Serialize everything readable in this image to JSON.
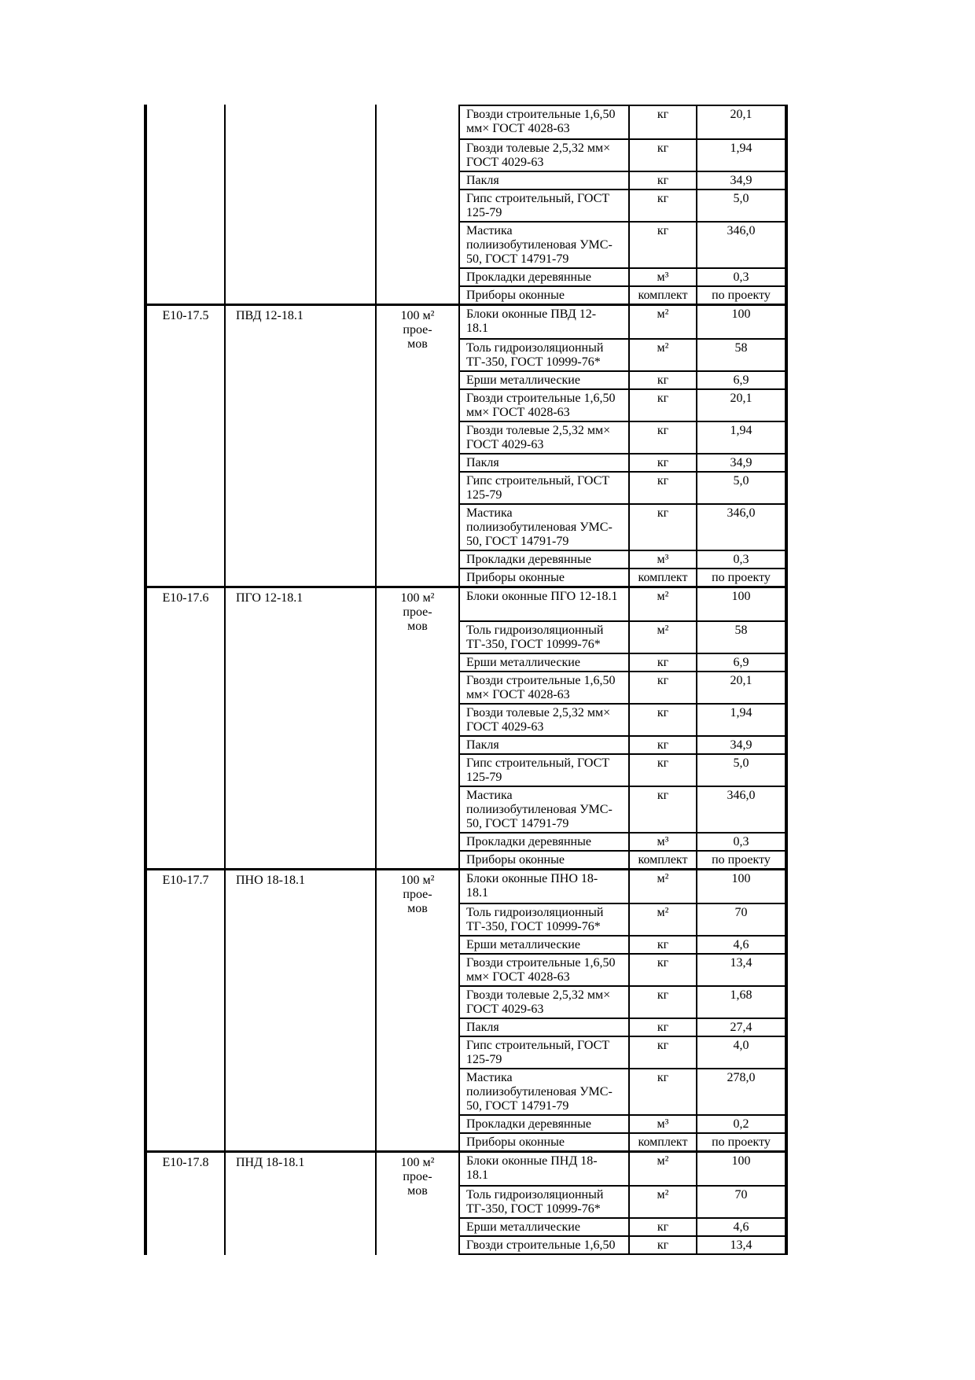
{
  "page": {
    "background": "#ffffff",
    "text_color": "#000000",
    "border_color": "#000000"
  },
  "table": {
    "groups": [
      {
        "code": "",
        "name": "",
        "unit": "",
        "materials": [
          {
            "name": "Гвозди строительные 1,6,50\nмм× ГОСТ 4028-63",
            "unit": "кг",
            "qty": "20,1"
          },
          {
            "name": "Гвозди толевые 2,5,32 мм×\nГОСТ 4029-63",
            "unit": "кг",
            "qty": "1,94"
          },
          {
            "name": "Пакля",
            "unit": "кг",
            "qty": "34,9"
          },
          {
            "name": "Гипс строительный, ГОСТ\n125-79",
            "unit": "кг",
            "qty": "5,0"
          },
          {
            "name": "Мастика\nполиизобутиленовая УМС-\n50, ГОСТ 14791-79",
            "unit": "кг",
            "qty": "346,0"
          },
          {
            "name": "Прокладки деревянные",
            "unit": "м³",
            "qty": "0,3"
          },
          {
            "name": "Приборы оконные",
            "unit": "комплект",
            "qty": "по проекту"
          }
        ]
      },
      {
        "code": "Е10-17.5",
        "name": "ПВД 12-18.1",
        "unit": "100 м²\nпрое-\nмов",
        "materials": [
          {
            "name": "Блоки оконные ПВД 12-\n18.1",
            "unit": "м²",
            "qty": "100"
          },
          {
            "name": "Толь гидроизоляционный\nТГ-350, ГОСТ 10999-76*",
            "unit": "м²",
            "qty": "58"
          },
          {
            "name": "Ерши металлические",
            "unit": "кг",
            "qty": "6,9"
          },
          {
            "name": "Гвозди строительные 1,6,50\nмм× ГОСТ 4028-63",
            "unit": "кг",
            "qty": "20,1"
          },
          {
            "name": "Гвозди толевые 2,5,32 мм×\nГОСТ 4029-63",
            "unit": "кг",
            "qty": "1,94"
          },
          {
            "name": "Пакля",
            "unit": "кг",
            "qty": "34,9"
          },
          {
            "name": "Гипс строительный, ГОСТ\n125-79",
            "unit": "кг",
            "qty": "5,0"
          },
          {
            "name": "Мастика\nполиизобутиленовая УМС-\n50, ГОСТ 14791-79",
            "unit": "кг",
            "qty": "346,0"
          },
          {
            "name": "Прокладки деревянные",
            "unit": "м³",
            "qty": "0,3"
          },
          {
            "name": "Приборы оконные",
            "unit": "комплект",
            "qty": "по проекту"
          }
        ]
      },
      {
        "code": "Е10-17.6",
        "name": "ПГО 12-18.1",
        "unit": "100 м²\nпрое-\nмов",
        "materials": [
          {
            "name": "Блоки оконные ПГО 12-18.1",
            "unit": "м²",
            "qty": "100"
          },
          {
            "name": "Толь гидроизоляционный\nТГ-350, ГОСТ 10999-76*",
            "unit": "м²",
            "qty": "58"
          },
          {
            "name": "Ерши металлические",
            "unit": "кг",
            "qty": "6,9"
          },
          {
            "name": "Гвозди строительные 1,6,50\nмм× ГОСТ 4028-63",
            "unit": "кг",
            "qty": "20,1"
          },
          {
            "name": "Гвозди толевые 2,5,32 мм×\nГОСТ 4029-63",
            "unit": "кг",
            "qty": "1,94"
          },
          {
            "name": "Пакля",
            "unit": "кг",
            "qty": "34,9"
          },
          {
            "name": "Гипс строительный, ГОСТ\n125-79",
            "unit": "кг",
            "qty": "5,0"
          },
          {
            "name": "Мастика\nполиизобутиленовая УМС-\n50, ГОСТ 14791-79",
            "unit": "кг",
            "qty": "346,0"
          },
          {
            "name": "Прокладки деревянные",
            "unit": "м³",
            "qty": "0,3"
          },
          {
            "name": "Приборы оконные",
            "unit": "комплект",
            "qty": "по проекту"
          }
        ]
      },
      {
        "code": "Е10-17.7",
        "name": "ПНО 18-18.1",
        "unit": "100 м²\nпрое-\nмов",
        "materials": [
          {
            "name": "Блоки оконные ПНО 18-\n18.1",
            "unit": "м²",
            "qty": "100"
          },
          {
            "name": "Толь гидроизоляционный\nТГ-350, ГОСТ 10999-76*",
            "unit": "м²",
            "qty": "70"
          },
          {
            "name": "Ерши металлические",
            "unit": "кг",
            "qty": "4,6"
          },
          {
            "name": "Гвозди строительные 1,6,50\nмм× ГОСТ 4028-63",
            "unit": "кг",
            "qty": "13,4"
          },
          {
            "name": "Гвозди толевые 2,5,32 мм×\nГОСТ 4029-63",
            "unit": "кг",
            "qty": "1,68"
          },
          {
            "name": "Пакля",
            "unit": "кг",
            "qty": "27,4"
          },
          {
            "name": "Гипс строительный, ГОСТ\n125-79",
            "unit": "кг",
            "qty": "4,0"
          },
          {
            "name": "Мастика\nполиизобутиленовая УМС-\n50, ГОСТ 14791-79",
            "unit": "кг",
            "qty": "278,0"
          },
          {
            "name": "Прокладки деревянные",
            "unit": "м³",
            "qty": "0,2"
          },
          {
            "name": "Приборы оконные",
            "unit": "комплект",
            "qty": "по проекту"
          }
        ]
      },
      {
        "code": "Е10-17.8",
        "name": "ПНД 18-18.1",
        "unit": "100 м²\nпрое-\nмов",
        "materials": [
          {
            "name": "Блоки оконные ПНД 18-\n18.1",
            "unit": "м²",
            "qty": "100"
          },
          {
            "name": "Толь гидроизоляционный\nТГ-350, ГОСТ 10999-76*",
            "unit": "м²",
            "qty": "70"
          },
          {
            "name": "Ерши металлические",
            "unit": "кг",
            "qty": "4,6"
          },
          {
            "name": "Гвозди строительные 1,6,50",
            "unit": "кг",
            "qty": "13,4"
          }
        ]
      }
    ]
  }
}
